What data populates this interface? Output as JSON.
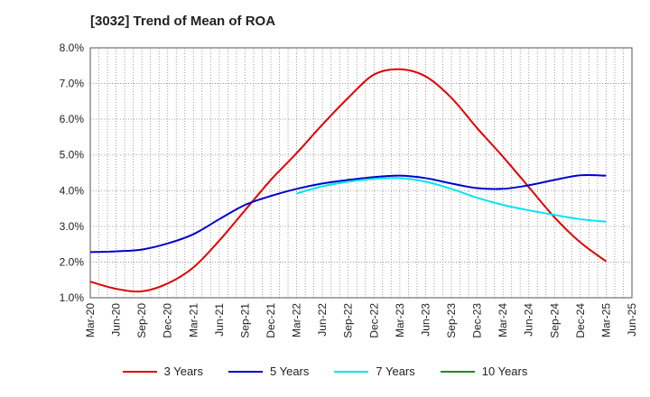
{
  "chart_data": {
    "type": "line",
    "title": "[3032]  Trend of Mean of ROA",
    "xlabel": "",
    "ylabel": "",
    "categories": [
      "Mar-20",
      "Jun-20",
      "Sep-20",
      "Dec-20",
      "Mar-21",
      "Jun-21",
      "Sep-21",
      "Dec-21",
      "Mar-22",
      "Jun-22",
      "Sep-22",
      "Dec-22",
      "Mar-23",
      "Jun-23",
      "Sep-23",
      "Dec-23",
      "Mar-24",
      "Jun-24",
      "Sep-24",
      "Dec-24",
      "Mar-25",
      "Jun-25"
    ],
    "y_ticks": [
      "1.0%",
      "2.0%",
      "3.0%",
      "4.0%",
      "5.0%",
      "6.0%",
      "7.0%",
      "8.0%"
    ],
    "ylim": [
      1.0,
      8.0
    ],
    "grid": true,
    "legend_position": "bottom",
    "series": [
      {
        "name": "3 Years",
        "color": "#e00000",
        "values": [
          1.45,
          1.25,
          1.18,
          1.4,
          1.85,
          2.6,
          3.45,
          4.3,
          5.05,
          5.85,
          6.6,
          7.25,
          7.4,
          7.2,
          6.6,
          5.75,
          4.95,
          4.1,
          3.25,
          2.55,
          2.02,
          null
        ]
      },
      {
        "name": "5 Years",
        "color": "#0000cc",
        "values": [
          2.28,
          2.3,
          2.35,
          2.52,
          2.78,
          3.2,
          3.6,
          3.85,
          4.05,
          4.2,
          4.3,
          4.38,
          4.42,
          4.35,
          4.2,
          4.07,
          4.05,
          4.15,
          4.3,
          4.43,
          4.42,
          null
        ]
      },
      {
        "name": "7 Years",
        "color": "#00e5ee",
        "values": [
          null,
          null,
          null,
          null,
          null,
          null,
          null,
          null,
          3.92,
          4.12,
          4.25,
          4.33,
          4.35,
          4.25,
          4.05,
          3.8,
          3.6,
          3.45,
          3.32,
          3.2,
          3.13,
          null
        ]
      },
      {
        "name": "10 Years",
        "color": "#228b22",
        "values": [
          null,
          null,
          null,
          null,
          null,
          null,
          null,
          null,
          null,
          null,
          null,
          null,
          null,
          null,
          null,
          null,
          null,
          null,
          null,
          null,
          null,
          null
        ]
      }
    ]
  }
}
